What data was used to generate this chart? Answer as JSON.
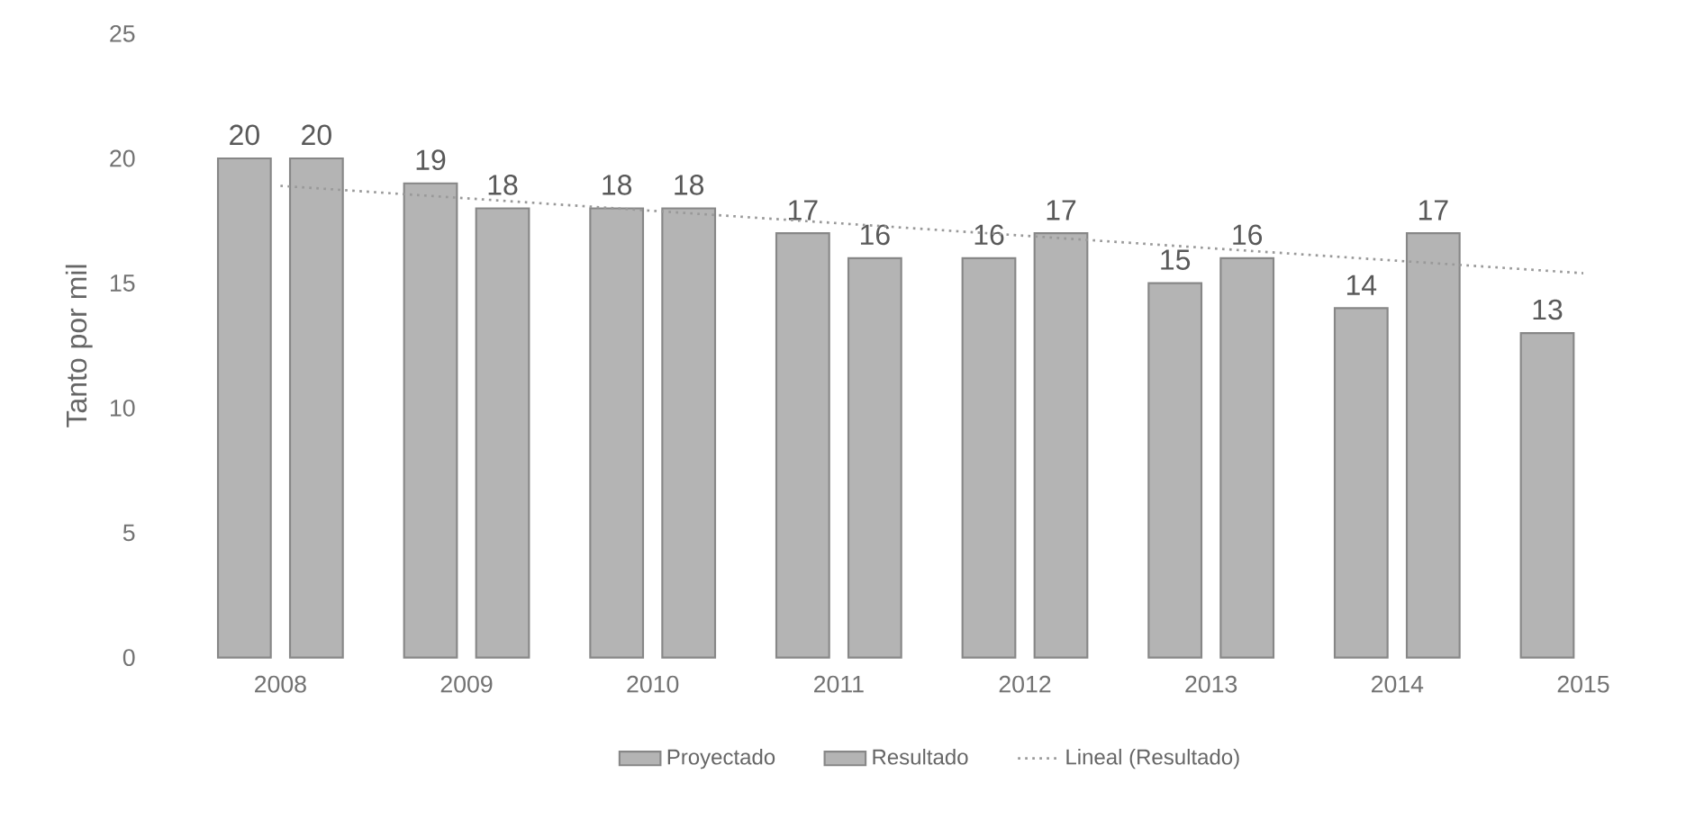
{
  "chart_data": {
    "type": "bar",
    "ylabel": "Tanto por mil",
    "categories": [
      "2008",
      "2009",
      "2010",
      "2011",
      "2012",
      "2013",
      "2014",
      "2015"
    ],
    "series": [
      {
        "name": "Proyectado",
        "color": "#b4b4b4",
        "values": [
          20,
          19,
          18,
          17,
          16,
          15,
          14,
          13
        ],
        "value_labels": [
          "20",
          "19",
          "18",
          "17",
          "16",
          "15",
          "14",
          "13"
        ]
      },
      {
        "name": "Resultado",
        "color": "#b4b4b4",
        "values": [
          20,
          18,
          18,
          16,
          17,
          16,
          17,
          null
        ],
        "value_labels": [
          "20",
          "18",
          "18",
          "16",
          "17",
          "16",
          "17",
          null
        ]
      },
      {
        "name": "Lineal (Resultado)",
        "type": "line",
        "line_style": "dotted",
        "color": "#999999",
        "values": [
          18.9,
          null,
          null,
          null,
          null,
          null,
          null,
          15.4
        ]
      }
    ],
    "ylim": [
      0,
      25
    ],
    "yticks": [
      0,
      5,
      10,
      15,
      20,
      25
    ],
    "legend": "bottom"
  }
}
